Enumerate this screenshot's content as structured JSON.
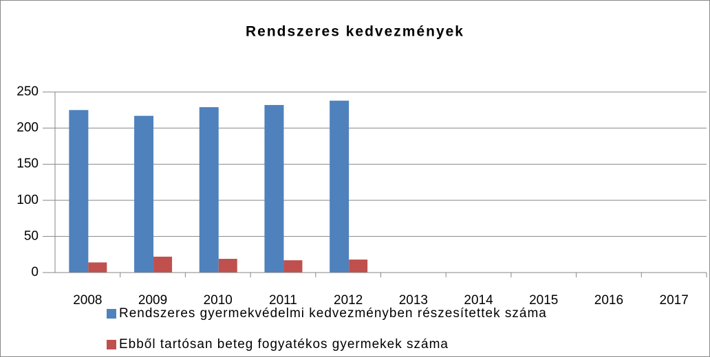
{
  "chart_data": {
    "type": "bar",
    "title": "Rendszeres kedvezmények",
    "categories": [
      "2008",
      "2009",
      "2010",
      "2011",
      "2012",
      "2013",
      "2014",
      "2015",
      "2016",
      "2017"
    ],
    "series": [
      {
        "name": "Rendszeres gyermekvédelmi kedvezményben részesítettek száma",
        "color": "#4f81bd",
        "values": [
          225,
          217,
          229,
          232,
          238,
          null,
          null,
          null,
          null,
          null
        ]
      },
      {
        "name": "Ebből tartósan beteg fogyatékos gyermekek száma",
        "color": "#c0504d",
        "values": [
          14,
          22,
          19,
          17,
          18,
          null,
          null,
          null,
          null,
          null
        ]
      }
    ],
    "ylim": [
      0,
      250
    ],
    "yticks": [
      0,
      50,
      100,
      150,
      200,
      250
    ],
    "grid": true,
    "legend": "bottom"
  }
}
